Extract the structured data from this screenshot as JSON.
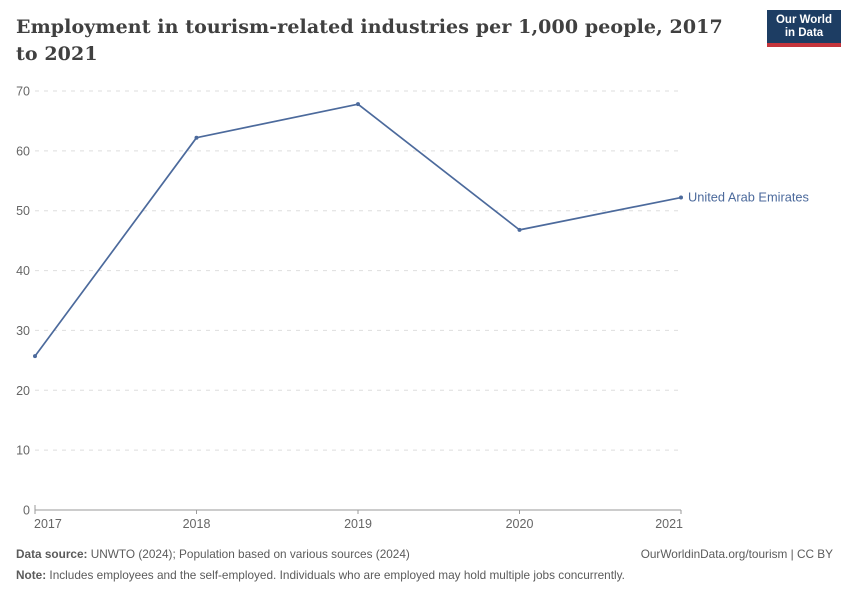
{
  "header": {
    "title": "Employment in tourism-related industries per 1,000 people, 2017 to 2021",
    "logo_line1": "Our World",
    "logo_line2": "in Data"
  },
  "chart_data": {
    "type": "line",
    "title": "Employment in tourism-related industries per 1,000 people, 2017 to 2021",
    "x": [
      2017,
      2018,
      2019,
      2020,
      2021
    ],
    "series": [
      {
        "name": "United Arab Emirates",
        "values": [
          25.7,
          62.2,
          67.8,
          46.8,
          52.2
        ],
        "color": "#4c6a9c"
      }
    ],
    "xlabel": "",
    "ylabel": "",
    "ylim": [
      0,
      70
    ],
    "yticks": [
      0,
      10,
      20,
      30,
      40,
      50,
      60,
      70
    ],
    "grid": "horizontal-dashed",
    "legend": "line-end-label"
  },
  "footer": {
    "datasource_label": "Data source:",
    "datasource_text": " UNWTO (2024); Population based on various sources (2024)",
    "link_text": "OurWorldinData.org/tourism | CC BY",
    "note_label": "Note:",
    "note_text": " Includes employees and the self-employed. Individuals who are employed may hold multiple jobs concurrently."
  },
  "colors": {
    "series_line": "#4c6a9c",
    "logo_navy": "#1d3d63",
    "logo_red": "#c5353c",
    "gridline": "#dedede",
    "axis": "#9a9a9a",
    "tick_label": "#666666",
    "title_text": "#404040",
    "footer_text": "#5b5b5b"
  }
}
